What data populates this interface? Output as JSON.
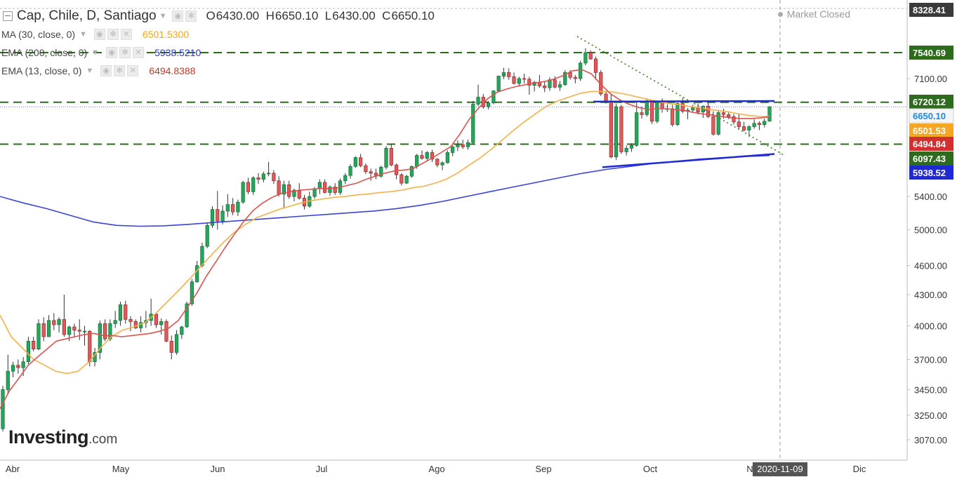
{
  "header": {
    "symbol_title": "Cap, Chile, D, Santiago",
    "ohlc": {
      "open_label": "O",
      "open": "6430.00",
      "high_label": "H",
      "high": "6650.10",
      "low_label": "L",
      "low": "6430.00",
      "close_label": "C",
      "close": "6650.10"
    },
    "market_status": "Market Closed"
  },
  "indicators": [
    {
      "label": "MA (30, close, 0)",
      "value": "6501.5300",
      "color": "#f5a623"
    },
    {
      "label": "EMA (200, close, 0)",
      "value": "5938.5210",
      "color": "#2b35c8"
    },
    {
      "label": "EMA (13, close, 0)",
      "value": "6494.8388",
      "color": "#c0392b"
    }
  ],
  "logo": {
    "text": "Investing",
    "suffix": ".com"
  },
  "chart_data": {
    "type": "candlestick",
    "y_axis": {
      "scale": "log",
      "ticks": [
        "7100.00",
        "5400.00",
        "5000.00",
        "4600.00",
        "4300.00",
        "4000.00",
        "3700.00",
        "3450.00",
        "3250.00",
        "3070.00"
      ]
    },
    "x_axis": {
      "ticks": [
        "Abr",
        "May",
        "Jun",
        "Jul",
        "Ago",
        "Sep",
        "Oct",
        "N",
        "Dic"
      ],
      "crosshair_label": "2020-11-09"
    },
    "price_labels": [
      {
        "value": "8328.41",
        "bg": "#3a3a3a",
        "fg": "#ffffff"
      },
      {
        "value": "7540.69",
        "bg": "#2e6b1f",
        "fg": "#ffffff"
      },
      {
        "value": "6720.12",
        "bg": "#2e6b1f",
        "fg": "#ffffff"
      },
      {
        "value": "6650.10",
        "bg": "#f5f5f5",
        "fg": "#1e88e5"
      },
      {
        "value": "6501.53",
        "bg": "#f5a623",
        "fg": "#ffffff"
      },
      {
        "value": "6494.84",
        "bg": "#d32f2f",
        "fg": "#ffffff"
      },
      {
        "value": "6097.43",
        "bg": "#2e6b1f",
        "fg": "#ffffff"
      },
      {
        "value": "5938.52",
        "bg": "#1f2ad6",
        "fg": "#ffffff"
      }
    ],
    "horizontal_levels": [
      7540.69,
      6720.12,
      6097.43
    ],
    "last_close": 6650.1,
    "channel": {
      "top": [
        [
          6730,
          6740
        ]
      ],
      "bottom": [
        [
          5780,
          5960
        ]
      ]
    },
    "candles": [
      [
        3150,
        3480,
        3130,
        3450
      ],
      [
        3450,
        3740,
        3420,
        3600
      ],
      [
        3600,
        3680,
        3550,
        3650
      ],
      [
        3650,
        3700,
        3580,
        3630
      ],
      [
        3630,
        3720,
        3560,
        3680
      ],
      [
        3680,
        3900,
        3660,
        3860
      ],
      [
        3860,
        3900,
        3770,
        3790
      ],
      [
        3790,
        4060,
        3780,
        4020
      ],
      [
        4020,
        4080,
        3860,
        3900
      ],
      [
        3900,
        4100,
        3900,
        4050
      ],
      [
        4050,
        4120,
        3960,
        4010
      ],
      [
        4010,
        4080,
        3940,
        4060
      ],
      [
        4060,
        4300,
        3900,
        3920
      ],
      [
        3920,
        4000,
        3860,
        3990
      ],
      [
        3990,
        4020,
        3900,
        3960
      ],
      [
        3960,
        4060,
        3870,
        3950
      ],
      [
        3950,
        4000,
        3820,
        3950
      ],
      [
        3950,
        3960,
        3640,
        3680
      ],
      [
        3680,
        3800,
        3640,
        3760
      ],
      [
        3760,
        4050,
        3700,
        4020
      ],
      [
        4020,
        4060,
        3860,
        3880
      ],
      [
        3880,
        4060,
        3860,
        4020
      ],
      [
        4020,
        4140,
        3980,
        4050
      ],
      [
        4050,
        4230,
        4000,
        4200
      ],
      [
        4200,
        4240,
        4020,
        4060
      ],
      [
        4060,
        4090,
        3950,
        4040
      ],
      [
        4040,
        4060,
        3970,
        3980
      ],
      [
        3980,
        4090,
        3940,
        4030
      ],
      [
        4030,
        4140,
        3980,
        4050
      ],
      [
        4050,
        4260,
        4000,
        4110
      ],
      [
        4110,
        4120,
        3980,
        4010
      ],
      [
        4010,
        4070,
        3920,
        4040
      ],
      [
        4040,
        4060,
        3850,
        3860
      ],
      [
        3860,
        3910,
        3700,
        3760
      ],
      [
        3760,
        3960,
        3740,
        3920
      ],
      [
        3920,
        4000,
        3880,
        3990
      ],
      [
        3990,
        4230,
        3980,
        4210
      ],
      [
        4210,
        4460,
        4190,
        4430
      ],
      [
        4430,
        4650,
        4420,
        4600
      ],
      [
        4600,
        4850,
        4580,
        4810
      ],
      [
        4810,
        5080,
        4790,
        5050
      ],
      [
        5050,
        5280,
        5020,
        5240
      ],
      [
        5240,
        5470,
        5000,
        5100
      ],
      [
        5100,
        5290,
        5060,
        5220
      ],
      [
        5220,
        5430,
        5150,
        5300
      ],
      [
        5300,
        5380,
        5170,
        5210
      ],
      [
        5210,
        5360,
        5160,
        5330
      ],
      [
        5330,
        5600,
        5310,
        5580
      ],
      [
        5580,
        5640,
        5430,
        5460
      ],
      [
        5460,
        5660,
        5420,
        5640
      ],
      [
        5640,
        5700,
        5560,
        5620
      ],
      [
        5620,
        5720,
        5580,
        5690
      ],
      [
        5690,
        5850,
        5660,
        5700
      ],
      [
        5700,
        5740,
        5560,
        5600
      ],
      [
        5600,
        5660,
        5400,
        5430
      ],
      [
        5430,
        5600,
        5260,
        5550
      ],
      [
        5550,
        5600,
        5370,
        5400
      ],
      [
        5400,
        5500,
        5340,
        5480
      ],
      [
        5480,
        5570,
        5360,
        5380
      ],
      [
        5380,
        5420,
        5240,
        5280
      ],
      [
        5280,
        5460,
        5260,
        5400
      ],
      [
        5400,
        5520,
        5370,
        5500
      ],
      [
        5500,
        5620,
        5430,
        5580
      ],
      [
        5580,
        5620,
        5440,
        5450
      ],
      [
        5450,
        5540,
        5410,
        5520
      ],
      [
        5520,
        5570,
        5420,
        5450
      ],
      [
        5450,
        5630,
        5420,
        5600
      ],
      [
        5600,
        5700,
        5560,
        5670
      ],
      [
        5670,
        5820,
        5630,
        5790
      ],
      [
        5790,
        5930,
        5770,
        5910
      ],
      [
        5910,
        5960,
        5780,
        5800
      ],
      [
        5800,
        5830,
        5690,
        5720
      ],
      [
        5720,
        5760,
        5600,
        5700
      ],
      [
        5700,
        5760,
        5620,
        5660
      ],
      [
        5660,
        5800,
        5640,
        5780
      ],
      [
        5780,
        6070,
        5750,
        6040
      ],
      [
        6040,
        6100,
        5790,
        5810
      ],
      [
        5810,
        5830,
        5620,
        5680
      ],
      [
        5680,
        5700,
        5540,
        5570
      ],
      [
        5570,
        5680,
        5560,
        5660
      ],
      [
        5660,
        5800,
        5640,
        5790
      ],
      [
        5790,
        5960,
        5760,
        5940
      ],
      [
        5940,
        6010,
        5880,
        5900
      ],
      [
        5900,
        6000,
        5870,
        5980
      ],
      [
        5980,
        6020,
        5850,
        5890
      ],
      [
        5890,
        5900,
        5780,
        5810
      ],
      [
        5810,
        5860,
        5740,
        5840
      ],
      [
        5840,
        6010,
        5830,
        5980
      ],
      [
        5980,
        6080,
        5930,
        6060
      ],
      [
        6060,
        6150,
        6000,
        6090
      ],
      [
        6090,
        6160,
        6030,
        6060
      ],
      [
        6060,
        6160,
        6020,
        6120
      ],
      [
        6120,
        6740,
        6100,
        6690
      ],
      [
        6690,
        7000,
        6660,
        6800
      ],
      [
        6800,
        6850,
        6620,
        6650
      ],
      [
        6650,
        6740,
        6610,
        6710
      ],
      [
        6710,
        6910,
        6690,
        6900
      ],
      [
        6900,
        7150,
        6880,
        7140
      ],
      [
        7140,
        7280,
        7090,
        7200
      ],
      [
        7200,
        7270,
        7080,
        7130
      ],
      [
        7130,
        7200,
        7000,
        7020
      ],
      [
        7020,
        7130,
        6980,
        7100
      ],
      [
        7100,
        7180,
        7020,
        7090
      ],
      [
        7090,
        7130,
        6840,
        6990
      ],
      [
        6990,
        7060,
        6890,
        7040
      ],
      [
        7040,
        7160,
        6950,
        6980
      ],
      [
        6980,
        7050,
        6880,
        6950
      ],
      [
        6950,
        7120,
        6900,
        7080
      ],
      [
        7080,
        7140,
        6940,
        6960
      ],
      [
        6960,
        7060,
        6900,
        7000
      ],
      [
        7000,
        7240,
        6980,
        7200
      ],
      [
        7200,
        7240,
        7080,
        7120
      ],
      [
        7120,
        7160,
        7020,
        7100
      ],
      [
        7100,
        7400,
        7060,
        7360
      ],
      [
        7360,
        7620,
        7320,
        7540
      ],
      [
        7540,
        7580,
        7420,
        7430
      ],
      [
        7430,
        7470,
        7080,
        7200
      ],
      [
        7200,
        7240,
        6820,
        6850
      ],
      [
        6850,
        6900,
        6700,
        6740
      ],
      [
        6740,
        6840,
        5900,
        5920
      ],
      [
        5920,
        6700,
        5880,
        6650
      ],
      [
        6650,
        6680,
        5960,
        5990
      ],
      [
        5990,
        6080,
        5940,
        6040
      ],
      [
        6040,
        6110,
        5990,
        6080
      ],
      [
        6080,
        6720,
        6060,
        6560
      ],
      [
        6560,
        6650,
        6470,
        6530
      ],
      [
        6530,
        6780,
        6500,
        6740
      ],
      [
        6740,
        6760,
        6390,
        6430
      ],
      [
        6430,
        6740,
        6400,
        6720
      ],
      [
        6720,
        6780,
        6560,
        6620
      ],
      [
        6620,
        6690,
        6570,
        6620
      ],
      [
        6620,
        6680,
        6350,
        6380
      ],
      [
        6380,
        6720,
        6360,
        6700
      ],
      [
        6700,
        6790,
        6550,
        6580
      ],
      [
        6580,
        6630,
        6460,
        6600
      ],
      [
        6600,
        6680,
        6560,
        6640
      ],
      [
        6640,
        6700,
        6530,
        6570
      ],
      [
        6570,
        6670,
        6480,
        6660
      ],
      [
        6660,
        6720,
        6480,
        6500
      ],
      [
        6500,
        6580,
        6220,
        6240
      ],
      [
        6240,
        6600,
        6220,
        6560
      ],
      [
        6560,
        6620,
        6470,
        6530
      ],
      [
        6530,
        6580,
        6460,
        6500
      ],
      [
        6500,
        6540,
        6380,
        6420
      ],
      [
        6420,
        6540,
        6320,
        6350
      ],
      [
        6350,
        6420,
        6280,
        6300
      ],
      [
        6300,
        6370,
        6200,
        6350
      ],
      [
        6350,
        6460,
        6320,
        6400
      ],
      [
        6400,
        6430,
        6300,
        6380
      ],
      [
        6380,
        6470,
        6340,
        6430
      ],
      [
        6430,
        6660,
        6430,
        6650
      ]
    ],
    "ema13": [
      3300,
      3440,
      3540,
      3650,
      3720,
      3790,
      3860,
      3880,
      3900,
      3920,
      3930,
      3910,
      3910,
      3900,
      3910,
      3920,
      3930,
      3950,
      3980,
      4050,
      4180,
      4320,
      4490,
      4640,
      4800,
      4950,
      5100,
      5230,
      5320,
      5390,
      5440,
      5460,
      5480,
      5490,
      5500,
      5500,
      5510,
      5540,
      5570,
      5620,
      5660,
      5700,
      5730,
      5740,
      5760,
      5830,
      5900,
      5980,
      6060,
      6240,
      6460,
      6630,
      6780,
      6880,
      6930,
      6970,
      7000,
      7030,
      7050,
      7090,
      7150,
      7230,
      7250,
      7180,
      7010,
      6860,
      6760,
      6690,
      6640,
      6610,
      6620,
      6620,
      6610,
      6590,
      6560,
      6540,
      6520,
      6500,
      6480,
      6470,
      6470,
      6480,
      6495
    ],
    "ma30": [
      4100,
      3900,
      3800,
      3700,
      3650,
      3600,
      3580,
      3600,
      3680,
      3800,
      3900,
      3960,
      3990,
      4030,
      4120,
      4230,
      4340,
      4460,
      4590,
      4720,
      4850,
      4970,
      5060,
      5140,
      5190,
      5240,
      5280,
      5320,
      5350,
      5370,
      5390,
      5400,
      5420,
      5430,
      5450,
      5460,
      5480,
      5510,
      5530,
      5570,
      5620,
      5700,
      5800,
      5900,
      6020,
      6150,
      6290,
      6420,
      6540,
      6660,
      6740,
      6800,
      6860,
      6890,
      6890,
      6880,
      6850,
      6810,
      6770,
      6730,
      6700,
      6680,
      6650,
      6630,
      6600,
      6580,
      6550,
      6520,
      6505,
      6501
    ],
    "ema200": [
      5400,
      5320,
      5250,
      5170,
      5090,
      5050,
      5040,
      5045,
      5060,
      5080,
      5100,
      5120,
      5140,
      5160,
      5180,
      5200,
      5220,
      5250,
      5290,
      5340,
      5400,
      5460,
      5520,
      5580,
      5640,
      5700,
      5750,
      5790,
      5830,
      5860,
      5890,
      5910,
      5925,
      5938
    ]
  }
}
